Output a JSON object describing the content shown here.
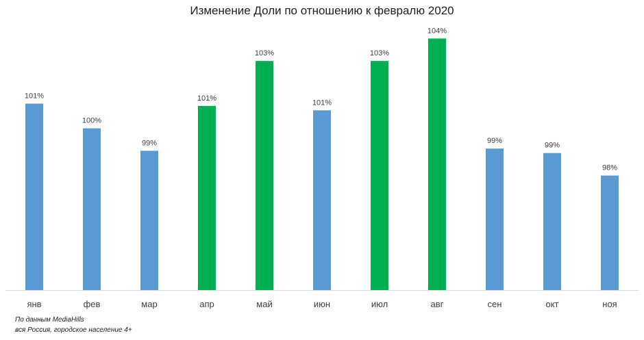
{
  "chart_data": {
    "type": "bar",
    "title": "Изменение Доли по отношению к февралю 2020",
    "xlabel": "",
    "ylabel": "",
    "categories": [
      "янв",
      "фев",
      "мар",
      "апр",
      "май",
      "июн",
      "июл",
      "авг",
      "сен",
      "окт",
      "ноя"
    ],
    "values": [
      101.3,
      100.2,
      99.2,
      101.2,
      103.2,
      101.0,
      103.2,
      104.2,
      99.3,
      99.1,
      98.1
    ],
    "data_labels": [
      "101%",
      "100%",
      "99%",
      "101%",
      "103%",
      "101%",
      "103%",
      "104%",
      "99%",
      "99%",
      "98%"
    ],
    "ylim": [
      93.0,
      105
    ],
    "grid": false,
    "legend": "none",
    "colors": {
      "default_bar": "#5B9BD5",
      "highlight_bar": "#00B050",
      "bar_colors": [
        "#5B9BD5",
        "#5B9BD5",
        "#5B9BD5",
        "#00B050",
        "#00B050",
        "#5B9BD5",
        "#00B050",
        "#00B050",
        "#5B9BD5",
        "#5B9BD5",
        "#5B9BD5"
      ],
      "axis": "#D9D9D9",
      "text": "#404040"
    }
  },
  "footnote": {
    "line1": "По данным MediaHills",
    "line2": "вся Россия, городское население 4+"
  }
}
